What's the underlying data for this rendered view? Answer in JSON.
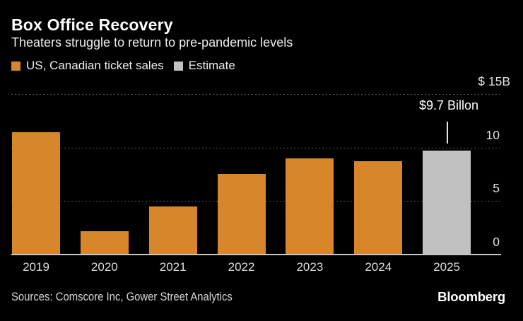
{
  "header": {
    "title": "Box Office Recovery",
    "subtitle": "Theaters struggle to return to pre-pandemic levels"
  },
  "legend": [
    {
      "label": "US, Canadian ticket sales",
      "color": "#d8862b"
    },
    {
      "label": "Estimate",
      "color": "#c1c1c1"
    }
  ],
  "chart_data": {
    "type": "bar",
    "categories": [
      "2019",
      "2020",
      "2021",
      "2022",
      "2023",
      "2024",
      "2025"
    ],
    "values": [
      11.4,
      2.2,
      4.5,
      7.5,
      9.0,
      8.7,
      9.7
    ],
    "estimate_flags": [
      false,
      false,
      false,
      false,
      false,
      false,
      true
    ],
    "series_name": "US, Canadian ticket sales",
    "estimate_name": "Estimate",
    "unit": "billions USD",
    "ylim": [
      0,
      15
    ],
    "yticks": [
      {
        "value": 15,
        "label": "$ 15B"
      },
      {
        "value": 10,
        "label": "10"
      },
      {
        "value": 5,
        "label": "5"
      },
      {
        "value": 0,
        "label": "0"
      }
    ],
    "grid": "horizontal-dotted",
    "legend_position": "top-left",
    "annotation": {
      "text": "$9.7 Billon",
      "target_category": "2025"
    },
    "bar_color": "#d8862b",
    "estimate_color": "#c1c1c1",
    "background_color": "#000000"
  },
  "footer": {
    "sources": "Sources: Comscore Inc, Gower Street Analytics",
    "logo": "Bloomberg"
  }
}
